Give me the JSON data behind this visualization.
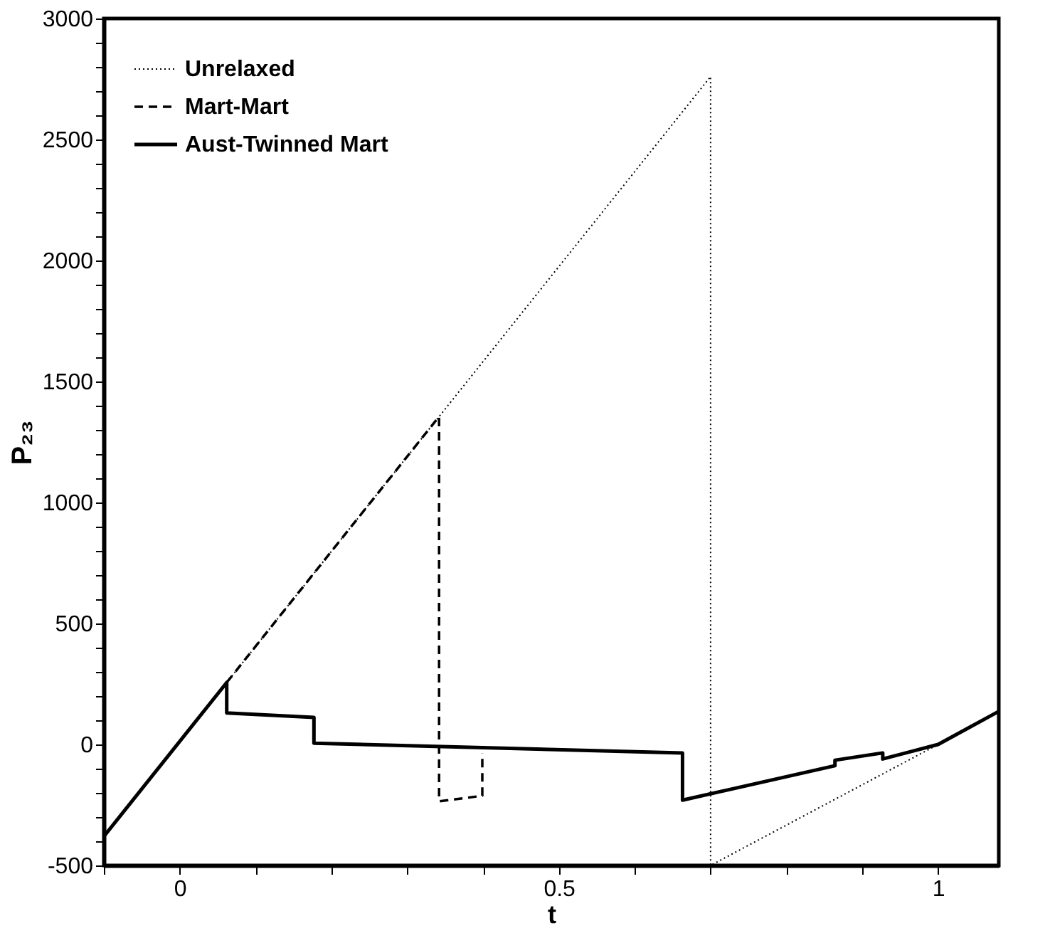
{
  "chart_data": {
    "type": "line",
    "xlabel": "t",
    "ylabel": "P₂₃",
    "xlim": [
      -0.1,
      1.08
    ],
    "ylim": [
      -500,
      3000
    ],
    "xticks": [
      {
        "value": -0.1,
        "label": null
      },
      0,
      {
        "value": 0.1,
        "label": null
      },
      {
        "value": 0.2,
        "label": null
      },
      {
        "value": 0.3,
        "label": null
      },
      {
        "value": 0.4,
        "label": null
      },
      0.5,
      {
        "value": 0.6,
        "label": null
      },
      {
        "value": 0.7,
        "label": null
      },
      {
        "value": 0.8,
        "label": null
      },
      {
        "value": 0.9,
        "label": null
      },
      1
    ],
    "yticks": [
      -500,
      {
        "value": -400,
        "label": null
      },
      {
        "value": -300,
        "label": null
      },
      {
        "value": -200,
        "label": null
      },
      {
        "value": -100,
        "label": null
      },
      0,
      {
        "value": 100,
        "label": null
      },
      {
        "value": 200,
        "label": null
      },
      {
        "value": 300,
        "label": null
      },
      {
        "value": 400,
        "label": null
      },
      500,
      {
        "value": 600,
        "label": null
      },
      {
        "value": 700,
        "label": null
      },
      {
        "value": 800,
        "label": null
      },
      {
        "value": 900,
        "label": null
      },
      1000,
      {
        "value": 1100,
        "label": null
      },
      {
        "value": 1200,
        "label": null
      },
      {
        "value": 1300,
        "label": null
      },
      {
        "value": 1400,
        "label": null
      },
      1500,
      {
        "value": 1600,
        "label": null
      },
      {
        "value": 1700,
        "label": null
      },
      {
        "value": 1800,
        "label": null
      },
      {
        "value": 1900,
        "label": null
      },
      2000,
      {
        "value": 2100,
        "label": null
      },
      {
        "value": 2200,
        "label": null
      },
      {
        "value": 2300,
        "label": null
      },
      {
        "value": 2400,
        "label": null
      },
      2500,
      {
        "value": 2600,
        "label": null
      },
      {
        "value": 2700,
        "label": null
      },
      {
        "value": 2800,
        "label": null
      },
      {
        "value": 2900,
        "label": null
      },
      3000
    ],
    "grid": false,
    "legend": "top left",
    "marker": "none",
    "series": [
      {
        "name": "Unrelaxed",
        "color": "#000000",
        "line_style": "dotted",
        "x": [
          -0.1,
          0.7,
          0.7,
          1.0,
          1.079
        ],
        "values": [
          -380,
          2760,
          -500,
          0,
          135
        ]
      },
      {
        "name": "Mart-Mart",
        "color": "#000000",
        "line_style": "dashed",
        "x": [
          0.062,
          0.342,
          0.342,
          0.399,
          0.399
        ],
        "values": [
          256,
          1355,
          -235,
          -212,
          -35
        ]
      },
      {
        "name": "Aust-Twinned Mart",
        "color": "#000000",
        "line_style": "solid",
        "x": [
          -0.1,
          0.062,
          0.062,
          0.177,
          0.177,
          0.663,
          0.663,
          0.864,
          0.864,
          0.927,
          0.927,
          1.0,
          1.079
        ],
        "values": [
          -380,
          256,
          130,
          112,
          5,
          -35,
          -230,
          -88,
          -65,
          -35,
          -60,
          0,
          135
        ]
      }
    ]
  }
}
